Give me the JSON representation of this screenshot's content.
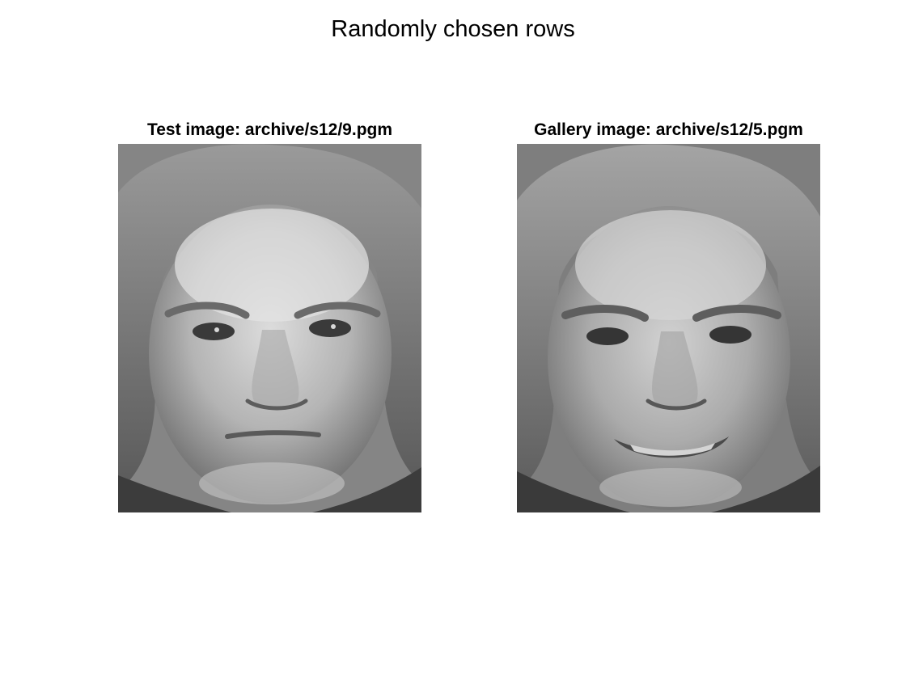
{
  "figure": {
    "title": "Randomly chosen rows"
  },
  "subplots": [
    {
      "title": "Test image: archive/s12/9.pgm",
      "image": "grayscale-face-photo"
    },
    {
      "title": "Gallery image: archive/s12/5.pgm",
      "image": "grayscale-face-photo"
    }
  ],
  "colors": {
    "background": "#ffffff",
    "text": "#000000"
  }
}
